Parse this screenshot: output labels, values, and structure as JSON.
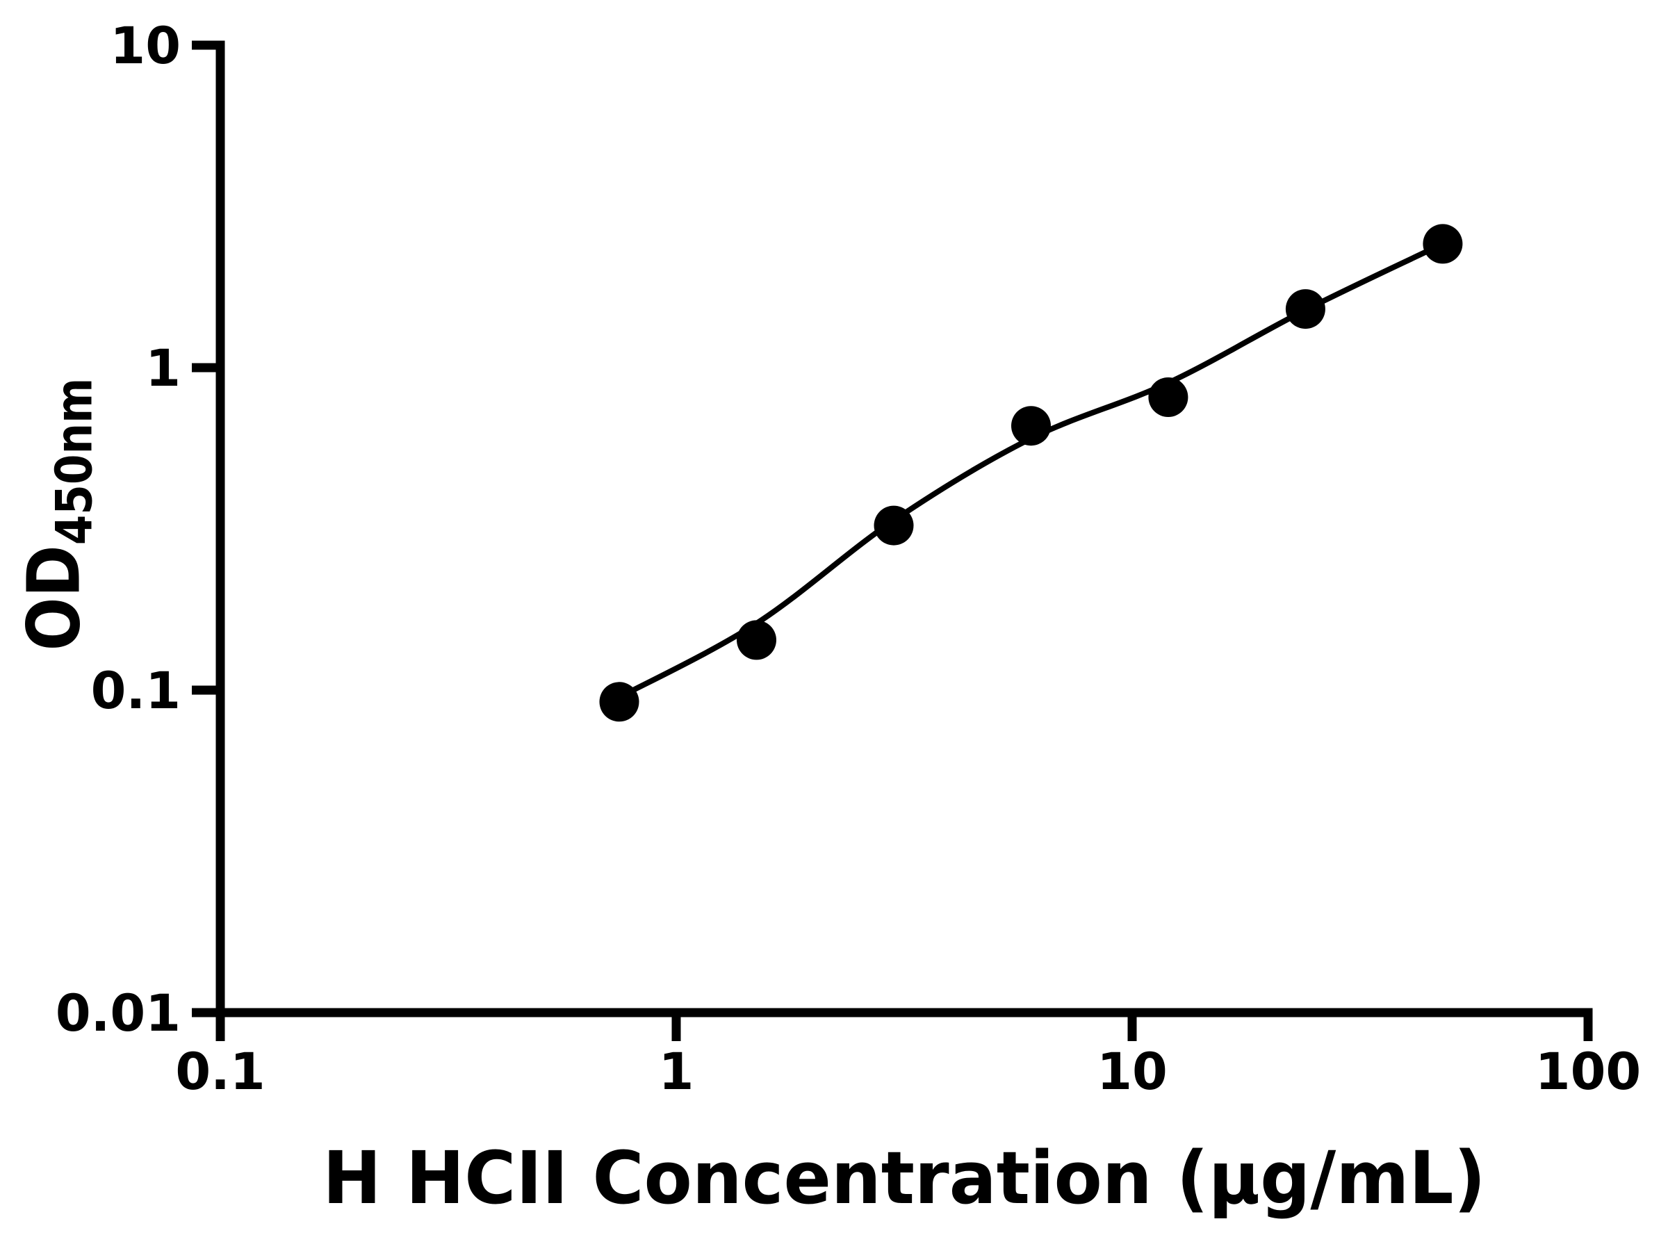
{
  "chart_data": {
    "type": "scatter",
    "title": "",
    "xlabel": "H HCII Concentration (µg/mL)",
    "ylabel": "OD450nm",
    "ylabel_main": "OD",
    "ylabel_sub": "450nm",
    "x_scale": "log",
    "y_scale": "log",
    "xlim": [
      0.1,
      100
    ],
    "ylim": [
      0.01,
      10
    ],
    "x_ticks": [
      {
        "value": 0.1,
        "label": "0.1"
      },
      {
        "value": 1,
        "label": "1"
      },
      {
        "value": 10,
        "label": "10"
      },
      {
        "value": 100,
        "label": "100"
      }
    ],
    "y_ticks": [
      {
        "value": 0.01,
        "label": "0.01"
      },
      {
        "value": 0.1,
        "label": "0.1"
      },
      {
        "value": 1,
        "label": "1"
      },
      {
        "value": 10,
        "label": "10"
      }
    ],
    "grid": false,
    "legend": "none",
    "series": [
      {
        "name": "standard-curve-points",
        "marker": "circle",
        "color": "#000000",
        "x": [
          0.75,
          1.5,
          3,
          6,
          12,
          24,
          48
        ],
        "y": [
          0.092,
          0.143,
          0.324,
          0.66,
          0.81,
          1.52,
          2.42
        ]
      }
    ],
    "fit_curve": {
      "color": "#000000",
      "x": [
        0.75,
        1.5,
        3,
        6,
        12,
        24,
        48
      ],
      "y": [
        0.095,
        0.161,
        0.336,
        0.603,
        0.897,
        1.51,
        2.42
      ]
    }
  },
  "colors": {
    "foreground": "#000000",
    "background": "#ffffff"
  }
}
